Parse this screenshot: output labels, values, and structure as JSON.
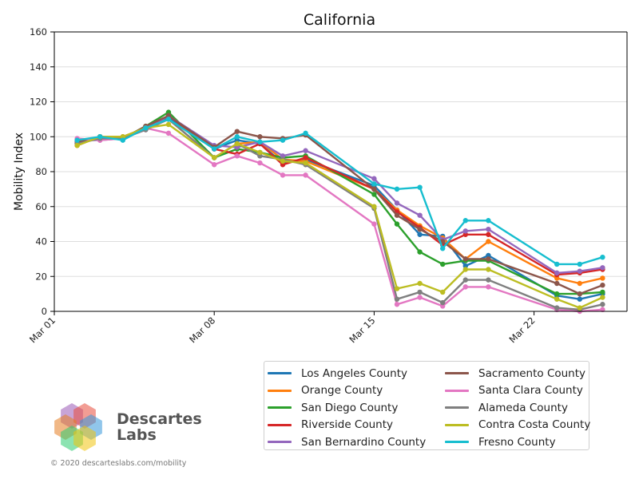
{
  "chart_data": {
    "type": "line",
    "title": "California",
    "xlabel": "",
    "ylabel": "Mobility Index",
    "ylim": [
      0,
      160
    ],
    "yticks": [
      0,
      20,
      40,
      60,
      80,
      100,
      120,
      140,
      160
    ],
    "xticks": [
      {
        "day": 0,
        "label": "Mar 01"
      },
      {
        "day": 7,
        "label": "Mar 08"
      },
      {
        "day": 14,
        "label": "Mar 15"
      },
      {
        "day": 21,
        "label": "Mar 22"
      }
    ],
    "xlim": [
      0,
      25
    ],
    "grid": "horizontal",
    "legend_position": "bottom-right",
    "series": [
      {
        "name": "Los Angeles County",
        "color": "#1f77b4",
        "points": [
          [
            1,
            97
          ],
          [
            2,
            100
          ],
          [
            3,
            99
          ],
          [
            4,
            105
          ],
          [
            5,
            111
          ],
          [
            7,
            93
          ],
          [
            8,
            98
          ],
          [
            9,
            96
          ],
          [
            10,
            85
          ],
          [
            11,
            87
          ],
          [
            14,
            72
          ],
          [
            15,
            58
          ],
          [
            16,
            44
          ],
          [
            17,
            43
          ],
          [
            18,
            26
          ],
          [
            19,
            32
          ],
          [
            22,
            9
          ],
          [
            23,
            7
          ],
          [
            24,
            10
          ]
        ]
      },
      {
        "name": "Orange County",
        "color": "#ff7f0e",
        "points": [
          [
            1,
            95
          ],
          [
            2,
            100
          ],
          [
            3,
            100
          ],
          [
            4,
            105
          ],
          [
            5,
            110
          ],
          [
            7,
            88
          ],
          [
            8,
            96
          ],
          [
            9,
            97
          ],
          [
            10,
            87
          ],
          [
            11,
            86
          ],
          [
            14,
            70
          ],
          [
            15,
            58
          ],
          [
            16,
            49
          ],
          [
            17,
            42
          ],
          [
            18,
            30
          ],
          [
            19,
            40
          ],
          [
            22,
            19
          ],
          [
            23,
            16
          ],
          [
            24,
            19
          ]
        ]
      },
      {
        "name": "San Diego County",
        "color": "#2ca02c",
        "points": [
          [
            1,
            96
          ],
          [
            2,
            100
          ],
          [
            3,
            99
          ],
          [
            4,
            106
          ],
          [
            5,
            114
          ],
          [
            7,
            88
          ],
          [
            8,
            93
          ],
          [
            9,
            91
          ],
          [
            10,
            88
          ],
          [
            11,
            89
          ],
          [
            14,
            67
          ],
          [
            15,
            50
          ],
          [
            16,
            34
          ],
          [
            17,
            27
          ],
          [
            18,
            29
          ],
          [
            19,
            29
          ],
          [
            22,
            10
          ],
          [
            23,
            10
          ],
          [
            24,
            11
          ]
        ]
      },
      {
        "name": "Riverside County",
        "color": "#d62728",
        "points": [
          [
            1,
            96
          ],
          [
            2,
            100
          ],
          [
            3,
            99
          ],
          [
            4,
            105
          ],
          [
            5,
            112
          ],
          [
            7,
            93
          ],
          [
            8,
            90
          ],
          [
            9,
            96
          ],
          [
            10,
            84
          ],
          [
            11,
            88
          ],
          [
            14,
            70
          ],
          [
            15,
            57
          ],
          [
            16,
            48
          ],
          [
            17,
            38
          ],
          [
            18,
            44
          ],
          [
            19,
            44
          ],
          [
            22,
            21
          ],
          [
            23,
            22
          ],
          [
            24,
            24
          ]
        ]
      },
      {
        "name": "San Bernardino County",
        "color": "#9467bd",
        "points": [
          [
            1,
            98
          ],
          [
            2,
            98
          ],
          [
            3,
            99
          ],
          [
            4,
            104
          ],
          [
            5,
            112
          ],
          [
            7,
            95
          ],
          [
            8,
            94
          ],
          [
            9,
            97
          ],
          [
            10,
            89
          ],
          [
            11,
            92
          ],
          [
            14,
            76
          ],
          [
            15,
            62
          ],
          [
            16,
            55
          ],
          [
            17,
            41
          ],
          [
            18,
            46
          ],
          [
            19,
            47
          ],
          [
            22,
            22
          ],
          [
            23,
            23
          ],
          [
            24,
            25
          ]
        ]
      },
      {
        "name": "Sacramento County",
        "color": "#8c564b",
        "points": [
          [
            1,
            97
          ],
          [
            2,
            100
          ],
          [
            3,
            99
          ],
          [
            4,
            106
          ],
          [
            5,
            112
          ],
          [
            7,
            94
          ],
          [
            8,
            103
          ],
          [
            9,
            100
          ],
          [
            10,
            99
          ],
          [
            11,
            101
          ],
          [
            14,
            70
          ],
          [
            15,
            55
          ],
          [
            16,
            47
          ],
          [
            17,
            40
          ],
          [
            18,
            30
          ],
          [
            19,
            30
          ],
          [
            22,
            16
          ],
          [
            23,
            10
          ],
          [
            24,
            15
          ]
        ]
      },
      {
        "name": "Santa Clara County",
        "color": "#e377c2",
        "points": [
          [
            1,
            99
          ],
          [
            2,
            98
          ],
          [
            3,
            99
          ],
          [
            4,
            105
          ],
          [
            5,
            102
          ],
          [
            7,
            84
          ],
          [
            8,
            89
          ],
          [
            9,
            85
          ],
          [
            10,
            78
          ],
          [
            11,
            78
          ],
          [
            14,
            50
          ],
          [
            15,
            4
          ],
          [
            16,
            8
          ],
          [
            17,
            3
          ],
          [
            18,
            14
          ],
          [
            19,
            14
          ],
          [
            22,
            1
          ],
          [
            23,
            0
          ],
          [
            24,
            1
          ]
        ]
      },
      {
        "name": "Alameda County",
        "color": "#7f7f7f",
        "points": [
          [
            1,
            96
          ],
          [
            2,
            99
          ],
          [
            3,
            99
          ],
          [
            4,
            104
          ],
          [
            5,
            110
          ],
          [
            7,
            88
          ],
          [
            8,
            96
          ],
          [
            9,
            89
          ],
          [
            10,
            87
          ],
          [
            11,
            84
          ],
          [
            14,
            59
          ],
          [
            15,
            7
          ],
          [
            16,
            11
          ],
          [
            17,
            5
          ],
          [
            18,
            18
          ],
          [
            19,
            18
          ],
          [
            22,
            2
          ],
          [
            23,
            1
          ],
          [
            24,
            4
          ]
        ]
      },
      {
        "name": "Contra Costa County",
        "color": "#bcbd22",
        "points": [
          [
            1,
            95
          ],
          [
            2,
            100
          ],
          [
            3,
            100
          ],
          [
            4,
            105
          ],
          [
            5,
            107
          ],
          [
            7,
            88
          ],
          [
            8,
            96
          ],
          [
            9,
            91
          ],
          [
            10,
            86
          ],
          [
            11,
            85
          ],
          [
            14,
            60
          ],
          [
            15,
            13
          ],
          [
            16,
            16
          ],
          [
            17,
            11
          ],
          [
            18,
            24
          ],
          [
            19,
            24
          ],
          [
            22,
            7
          ],
          [
            23,
            2
          ],
          [
            24,
            8
          ]
        ]
      },
      {
        "name": "Fresno County",
        "color": "#17becf",
        "points": [
          [
            1,
            98
          ],
          [
            2,
            100
          ],
          [
            3,
            98
          ],
          [
            4,
            105
          ],
          [
            5,
            110
          ],
          [
            7,
            93
          ],
          [
            8,
            100
          ],
          [
            9,
            97
          ],
          [
            10,
            98
          ],
          [
            11,
            102
          ],
          [
            14,
            73
          ],
          [
            15,
            70
          ],
          [
            16,
            71
          ],
          [
            17,
            36
          ],
          [
            18,
            52
          ],
          [
            19,
            52
          ],
          [
            22,
            27
          ],
          [
            23,
            27
          ],
          [
            24,
            31
          ]
        ]
      }
    ]
  },
  "branding": {
    "name_line1": "Descartes",
    "name_line2": "Labs",
    "copyright": "© 2020 descarteslabs.com/mobility"
  },
  "colors": {
    "grid": "#dddddd",
    "axis": "#000000",
    "logo_hex": [
      "#9b59b6",
      "#e74c3c",
      "#e67e22",
      "#3498db",
      "#2ecc71",
      "#f1c40f"
    ]
  }
}
